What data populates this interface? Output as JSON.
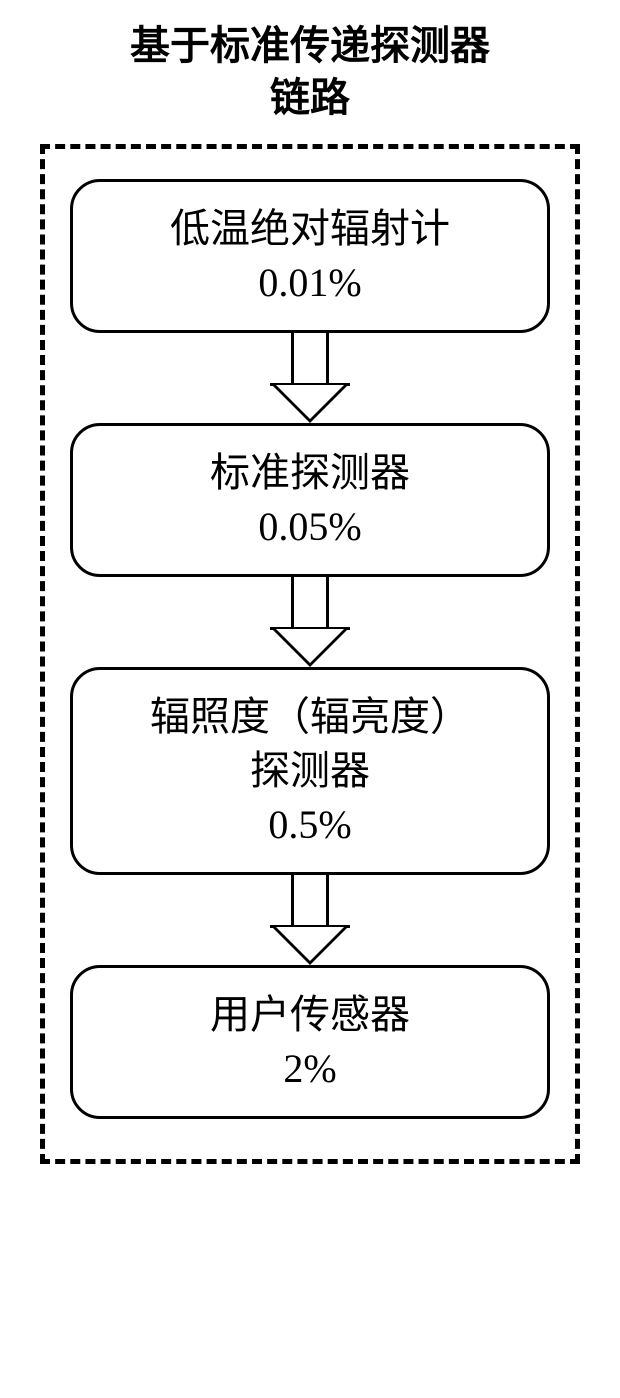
{
  "title": {
    "line1": "基于标准传递探测器",
    "line2": "链路"
  },
  "flowchart": {
    "type": "flowchart",
    "background_color": "#ffffff",
    "border_style": "dashed",
    "border_color": "#000000",
    "border_width": 5,
    "node_border_color": "#000000",
    "node_border_width": 3,
    "node_border_radius": 30,
    "node_background": "#ffffff",
    "text_color": "#000000",
    "title_fontsize": 40,
    "node_fontsize": 40,
    "arrow_color": "#000000",
    "nodes": [
      {
        "id": "node1",
        "label_line1": "低温绝对辐射计",
        "label_line2": "0.01%"
      },
      {
        "id": "node2",
        "label_line1": "标准探测器",
        "label_line2": "0.05%"
      },
      {
        "id": "node3",
        "label_line1": "辐照度（辐亮度）",
        "label_line2": "探测器",
        "label_line3": "0.5%"
      },
      {
        "id": "node4",
        "label_line1": "用户传感器",
        "label_line2": "2%"
      }
    ],
    "edges": [
      {
        "from": "node1",
        "to": "node2"
      },
      {
        "from": "node2",
        "to": "node3"
      },
      {
        "from": "node3",
        "to": "node4"
      }
    ]
  }
}
